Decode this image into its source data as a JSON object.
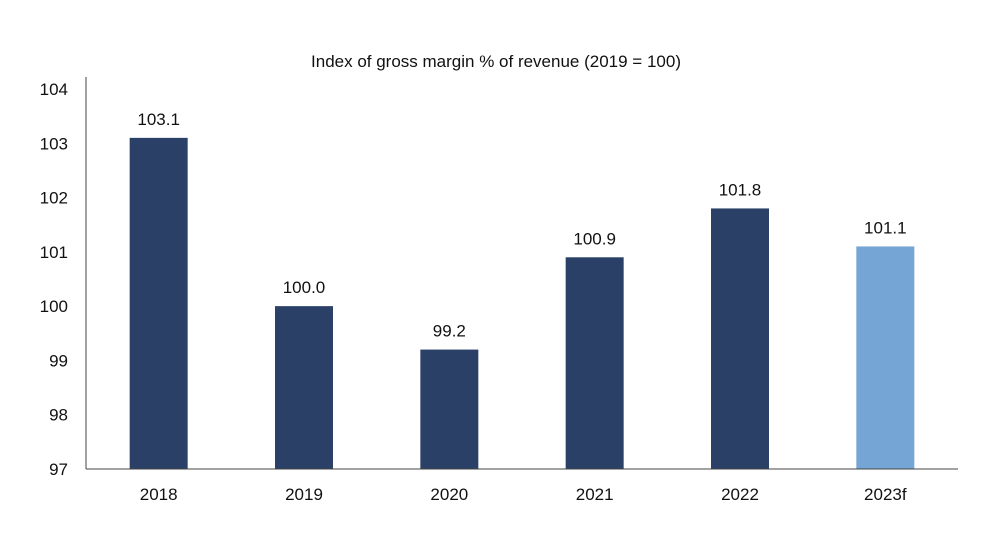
{
  "chart_data": {
    "type": "bar",
    "title": "Index of gross margin % of revenue (2019 = 100)",
    "xlabel": "",
    "ylabel": "",
    "categories": [
      "2018",
      "2019",
      "2020",
      "2021",
      "2022",
      "2023f"
    ],
    "values": [
      103.1,
      100.0,
      99.2,
      100.9,
      101.8,
      101.1
    ],
    "value_labels": [
      "103.1",
      "100.0",
      "99.2",
      "100.9",
      "101.8",
      "101.1"
    ],
    "yticks": [
      "97",
      "98",
      "99",
      "100",
      "101",
      "102",
      "103",
      "104"
    ],
    "ylim": [
      97,
      104
    ],
    "grid": false,
    "legend": "none",
    "colors": {
      "actual": "#2b4066",
      "forecast": "#75a5d4"
    },
    "bar_colors": [
      "actual",
      "actual",
      "actual",
      "actual",
      "actual",
      "forecast"
    ]
  }
}
